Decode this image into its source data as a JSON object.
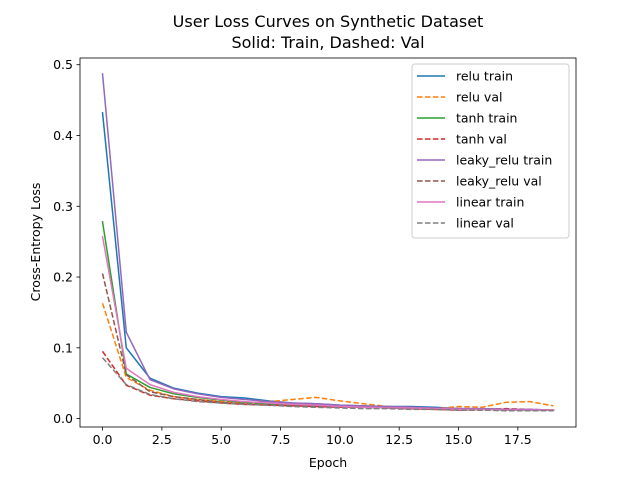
{
  "chart_data": {
    "type": "line",
    "title": "User Loss Curves on Synthetic Dataset",
    "subtitle": "Solid: Train, Dashed: Val",
    "xlabel": "Epoch",
    "ylabel": "Cross-Entropy Loss",
    "xlim": [
      -0.95,
      19.95
    ],
    "ylim": [
      -0.0119,
      0.5095
    ],
    "xticks": [
      0,
      2.5,
      5,
      7.5,
      10,
      12.5,
      15,
      17.5
    ],
    "xtick_labels": [
      "0.0",
      "2.5",
      "5.0",
      "7.5",
      "10.0",
      "12.5",
      "15.0",
      "17.5"
    ],
    "yticks": [
      0,
      0.1,
      0.2,
      0.3,
      0.4,
      0.5
    ],
    "ytick_labels": [
      "0.0",
      "0.1",
      "0.2",
      "0.3",
      "0.4",
      "0.5"
    ],
    "grid": false,
    "legend_position": "top-right",
    "x": [
      0,
      1,
      2,
      3,
      4,
      5,
      6,
      7,
      8,
      9,
      10,
      11,
      12,
      13,
      14,
      15,
      16,
      17,
      18,
      19
    ],
    "series": [
      {
        "name": "relu train",
        "style": "solid",
        "color": "#1f77b4",
        "values": [
          0.432,
          0.1,
          0.057,
          0.043,
          0.036,
          0.031,
          0.029,
          0.025,
          0.022,
          0.021,
          0.019,
          0.018,
          0.017,
          0.017,
          0.016,
          0.014,
          0.014,
          0.013,
          0.012,
          0.012
        ]
      },
      {
        "name": "relu val",
        "style": "dashed",
        "color": "#ff7f0e",
        "values": [
          0.163,
          0.058,
          0.04,
          0.031,
          0.027,
          0.024,
          0.022,
          0.024,
          0.027,
          0.03,
          0.025,
          0.021,
          0.017,
          0.016,
          0.014,
          0.017,
          0.016,
          0.023,
          0.024,
          0.018
        ]
      },
      {
        "name": "tanh train",
        "style": "solid",
        "color": "#2ca02c",
        "values": [
          0.278,
          0.063,
          0.044,
          0.035,
          0.03,
          0.026,
          0.023,
          0.021,
          0.019,
          0.018,
          0.017,
          0.016,
          0.015,
          0.014,
          0.014,
          0.013,
          0.013,
          0.012,
          0.012,
          0.012
        ]
      },
      {
        "name": "tanh val",
        "style": "dashed",
        "color": "#d62728",
        "values": [
          0.095,
          0.047,
          0.033,
          0.028,
          0.025,
          0.022,
          0.02,
          0.019,
          0.018,
          0.017,
          0.016,
          0.016,
          0.015,
          0.014,
          0.013,
          0.012,
          0.013,
          0.014,
          0.013,
          0.012
        ]
      },
      {
        "name": "leaky_relu train",
        "style": "solid",
        "color": "#9467bd",
        "values": [
          0.487,
          0.122,
          0.055,
          0.042,
          0.035,
          0.03,
          0.027,
          0.024,
          0.022,
          0.021,
          0.019,
          0.018,
          0.017,
          0.016,
          0.015,
          0.014,
          0.014,
          0.013,
          0.013,
          0.012
        ]
      },
      {
        "name": "leaky_relu val",
        "style": "dashed",
        "color": "#8c564b",
        "values": [
          0.205,
          0.062,
          0.038,
          0.031,
          0.027,
          0.023,
          0.021,
          0.019,
          0.018,
          0.017,
          0.016,
          0.015,
          0.015,
          0.014,
          0.013,
          0.012,
          0.012,
          0.012,
          0.011,
          0.011
        ]
      },
      {
        "name": "linear train",
        "style": "solid",
        "color": "#e377c2",
        "values": [
          0.257,
          0.071,
          0.048,
          0.037,
          0.031,
          0.027,
          0.024,
          0.022,
          0.02,
          0.019,
          0.017,
          0.016,
          0.015,
          0.015,
          0.014,
          0.013,
          0.013,
          0.012,
          0.012,
          0.012
        ]
      },
      {
        "name": "linear val",
        "style": "dashed",
        "color": "#7f7f7f",
        "values": [
          0.086,
          0.048,
          0.034,
          0.028,
          0.024,
          0.022,
          0.02,
          0.019,
          0.017,
          0.016,
          0.015,
          0.014,
          0.014,
          0.013,
          0.013,
          0.012,
          0.012,
          0.011,
          0.011,
          0.011
        ]
      }
    ]
  }
}
